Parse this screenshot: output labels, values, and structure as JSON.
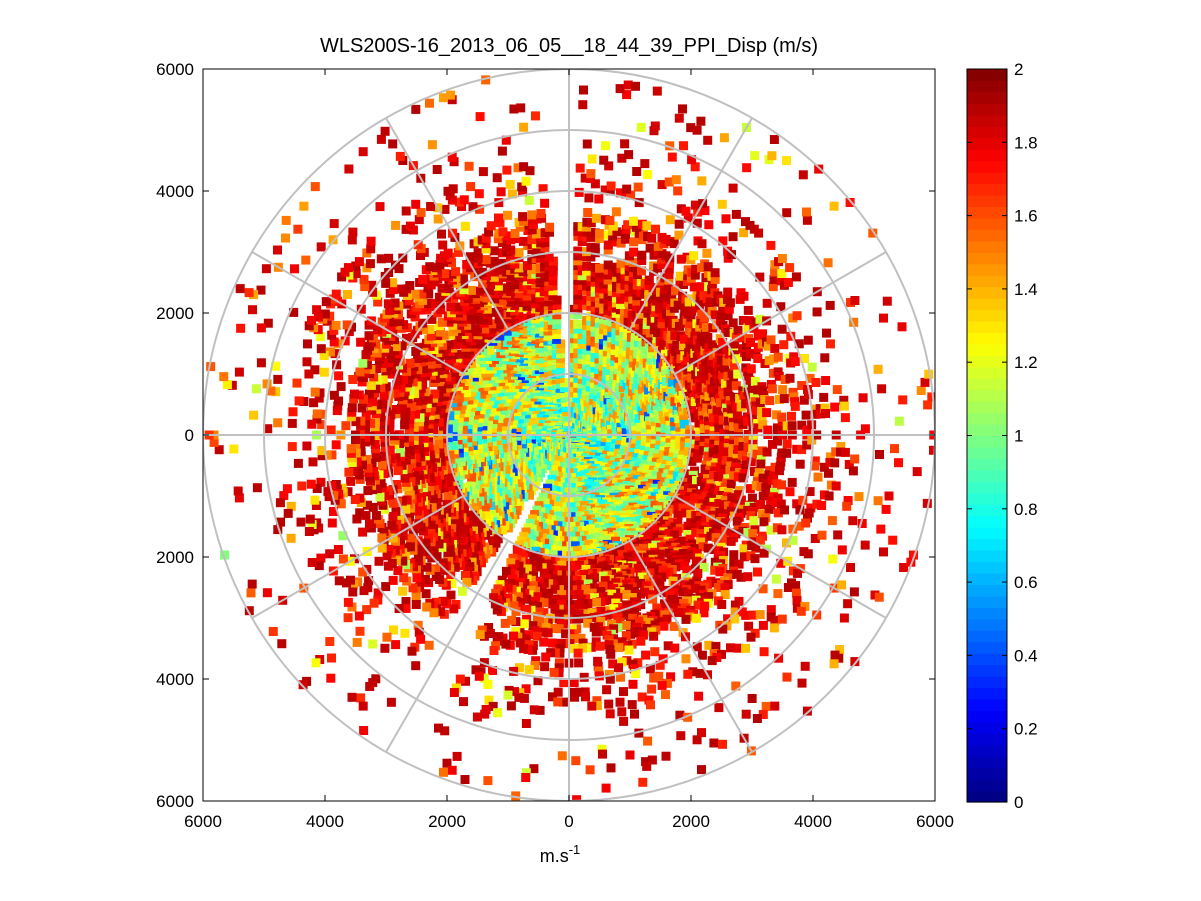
{
  "chart_data": {
    "type": "heatmap",
    "subtype": "polar-ppi",
    "title": "WLS200S-16_2013_06_05__18_44_39_PPI_Disp (m/s)",
    "xlabel_base": "m.s",
    "xlabel_exp": "-1",
    "ylabel": "",
    "xlim": [
      -6000,
      6000
    ],
    "ylim": [
      -6000,
      6000
    ],
    "x_tick_values": [
      -6000,
      -4000,
      -2000,
      0,
      2000,
      4000,
      6000
    ],
    "x_tick_labels": [
      "6000",
      "4000",
      "2000",
      "0",
      "2000",
      "4000",
      "6000"
    ],
    "y_tick_values": [
      6000,
      4000,
      2000,
      0,
      -2000,
      -4000,
      -6000
    ],
    "y_tick_labels": [
      "6000",
      "4000",
      "2000",
      "0",
      "2000",
      "4000",
      "6000"
    ],
    "range_rings": [
      1000,
      2000,
      3000,
      4000,
      5000,
      6000
    ],
    "spoke_angles_deg": [
      0,
      30,
      60,
      90,
      120,
      150,
      180,
      210,
      240,
      270,
      300,
      330
    ],
    "colorbar": {
      "min": 0,
      "max": 2,
      "colormap": "jet",
      "ticks": [
        "0",
        "0.2",
        "0.4",
        "0.6",
        "0.8",
        "1",
        "1.2",
        "1.4",
        "1.6",
        "1.8",
        "2"
      ]
    },
    "data_description": {
      "inner_radius_m": 2000,
      "inner_typical_value": 1.0,
      "outer_typical_value": 1.9,
      "max_range_m": 6000,
      "empty_sectors_deg": [
        [
          205,
          213
        ],
        [
          355,
          360
        ],
        [
          0,
          2
        ]
      ]
    }
  },
  "colors": {
    "grid": "#c0c0c0",
    "axis": "#000000",
    "background": "#ffffff"
  }
}
